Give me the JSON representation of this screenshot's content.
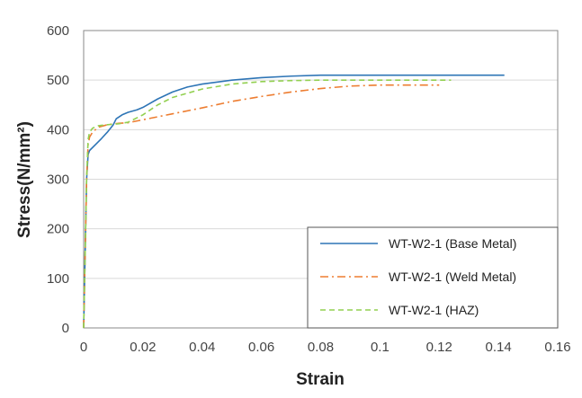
{
  "chart_data": {
    "type": "line",
    "title": "",
    "xlabel": "Strain",
    "ylabel": "Stress(N/mm²)",
    "xlim": [
      0,
      0.16
    ],
    "ylim": [
      0,
      600
    ],
    "x_ticks": [
      0,
      0.02,
      0.04,
      0.06,
      0.08,
      0.1,
      0.12,
      0.14,
      0.16
    ],
    "x_tick_labels": [
      "0",
      "0.02",
      "0.04",
      "0.06",
      "0.08",
      "0.1",
      "0.12",
      "0.14",
      "0.16"
    ],
    "y_ticks": [
      0,
      100,
      200,
      300,
      400,
      500,
      600
    ],
    "y_tick_labels": [
      "0",
      "100",
      "200",
      "300",
      "400",
      "500",
      "600"
    ],
    "grid": "horizontal",
    "legend_position": "bottom-right",
    "series": [
      {
        "name": "WT-W2-1 (Base Metal)",
        "color": "#2E75B6",
        "dash": "solid",
        "points": [
          [
            0,
            0
          ],
          [
            0.0005,
            150
          ],
          [
            0.001,
            300
          ],
          [
            0.0015,
            350
          ],
          [
            0.002,
            358
          ],
          [
            0.004,
            370
          ],
          [
            0.006,
            382
          ],
          [
            0.008,
            395
          ],
          [
            0.01,
            410
          ],
          [
            0.011,
            422
          ],
          [
            0.013,
            430
          ],
          [
            0.015,
            435
          ],
          [
            0.018,
            440
          ],
          [
            0.02,
            445
          ],
          [
            0.025,
            462
          ],
          [
            0.03,
            476
          ],
          [
            0.035,
            486
          ],
          [
            0.04,
            492
          ],
          [
            0.05,
            500
          ],
          [
            0.06,
            505
          ],
          [
            0.07,
            508
          ],
          [
            0.08,
            510
          ],
          [
            0.1,
            510
          ],
          [
            0.12,
            510
          ],
          [
            0.142,
            510
          ]
        ]
      },
      {
        "name": "WT-W2-1 (Weld Metal)",
        "color": "#ED7D31",
        "dash": "dashdot",
        "points": [
          [
            0,
            0
          ],
          [
            0.0005,
            150
          ],
          [
            0.001,
            300
          ],
          [
            0.0015,
            370
          ],
          [
            0.002,
            385
          ],
          [
            0.003,
            395
          ],
          [
            0.005,
            405
          ],
          [
            0.008,
            410
          ],
          [
            0.012,
            413
          ],
          [
            0.015,
            414
          ],
          [
            0.02,
            420
          ],
          [
            0.03,
            432
          ],
          [
            0.04,
            444
          ],
          [
            0.05,
            457
          ],
          [
            0.06,
            467
          ],
          [
            0.07,
            476
          ],
          [
            0.08,
            483
          ],
          [
            0.09,
            488
          ],
          [
            0.1,
            490
          ],
          [
            0.11,
            490
          ],
          [
            0.12,
            490
          ]
        ]
      },
      {
        "name": "WT-W2-1 (HAZ)",
        "color": "#92D050",
        "dash": "dashed",
        "points": [
          [
            0,
            0
          ],
          [
            0.0005,
            150
          ],
          [
            0.001,
            300
          ],
          [
            0.0015,
            380
          ],
          [
            0.002,
            395
          ],
          [
            0.003,
            403
          ],
          [
            0.005,
            408
          ],
          [
            0.008,
            410
          ],
          [
            0.012,
            412
          ],
          [
            0.015,
            415
          ],
          [
            0.02,
            430
          ],
          [
            0.025,
            450
          ],
          [
            0.03,
            465
          ],
          [
            0.04,
            482
          ],
          [
            0.05,
            492
          ],
          [
            0.06,
            497
          ],
          [
            0.07,
            499
          ],
          [
            0.08,
            500
          ],
          [
            0.1,
            500
          ],
          [
            0.12,
            500
          ],
          [
            0.124,
            500
          ]
        ]
      }
    ]
  }
}
